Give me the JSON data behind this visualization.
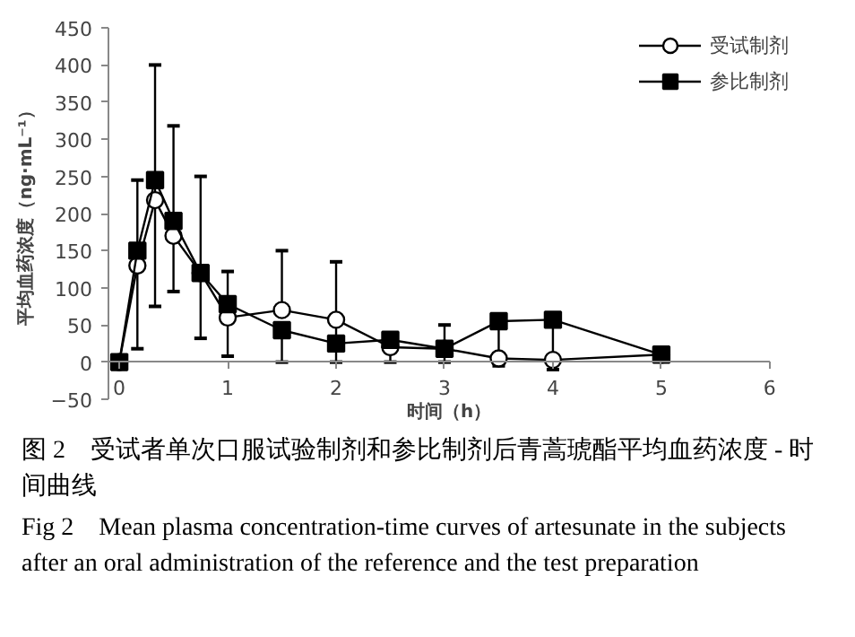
{
  "chart_data": {
    "type": "line",
    "xlabel": "时间（h）",
    "ylabel": "平均血药浓度（ng·mL⁻¹）",
    "x": [
      0,
      0.167,
      0.33,
      0.5,
      0.75,
      1,
      1.5,
      2,
      2.5,
      3,
      3.5,
      4,
      5
    ],
    "series": [
      {
        "name": "受试制剂",
        "color": "#000000",
        "marker": "circle",
        "values": [
          0,
          130,
          218,
          170,
          120,
          60,
          70,
          57,
          20,
          18,
          5,
          3,
          10
        ],
        "errors": [
          null,
          null,
          null,
          null,
          null,
          null,
          [
            70,
            150
          ],
          [
            0,
            135
          ],
          null,
          null,
          null,
          null,
          null
        ]
      },
      {
        "name": "参比制剂",
        "color": "#000000",
        "marker": "square",
        "values": [
          0,
          150,
          245,
          190,
          120,
          78,
          43,
          25,
          30,
          18,
          55,
          57,
          10
        ],
        "errors": [
          null,
          [
            18,
            245
          ],
          [
            75,
            400
          ],
          [
            95,
            318
          ],
          [
            32,
            250
          ],
          [
            8,
            122
          ],
          [
            0,
            43
          ],
          null,
          [
            0,
            35
          ],
          [
            0,
            50
          ],
          [
            -5,
            55
          ],
          [
            -10,
            57
          ],
          null
        ]
      }
    ],
    "xlim": [
      -0.1,
      6
    ],
    "xticks": [
      0,
      1,
      2,
      3,
      4,
      5,
      6
    ],
    "ylim": [
      -50,
      450
    ],
    "yticks": [
      -50,
      0,
      50,
      100,
      150,
      200,
      250,
      300,
      350,
      400,
      450
    ],
    "grid": false,
    "legend": "top right",
    "annotations": [
      "图 2　受试者单次口服试验制剂和参比制剂后青蒿琥酯平均血药浓度 - 时间曲线",
      "Fig 2　Mean plasma concentration-time curves of artesunate in the subjects after an oral administration of the reference and the test preparation"
    ]
  }
}
